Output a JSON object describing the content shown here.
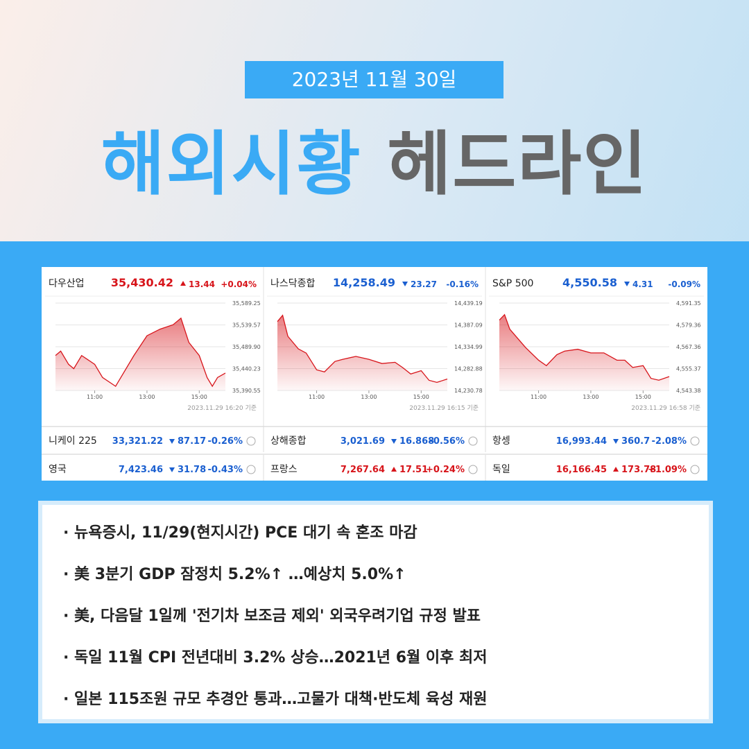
{
  "header": {
    "date": "2023년 11월 30일",
    "title_blue": "해외시황",
    "title_gray": "헤드라인"
  },
  "charts": [
    {
      "chart_data": {
        "type": "area",
        "title": "다우산업",
        "price": "35,430.42",
        "change": "13.44",
        "change_pct": "+0.04%",
        "color": "#d7141a",
        "direction": "up",
        "x": [
          9.5,
          9.7,
          10,
          10.2,
          10.5,
          11,
          11.3,
          11.8,
          12,
          12.5,
          13,
          13.5,
          14,
          14.3,
          14.6,
          15,
          15.3,
          15.5,
          15.7,
          16
        ],
        "values": [
          35470,
          35480,
          35450,
          35440,
          35470,
          35450,
          35420,
          35400,
          35420,
          35470,
          35515,
          35530,
          35540,
          35555,
          35500,
          35470,
          35420,
          35400,
          35420,
          35430
        ],
        "xlim": [
          9.5,
          16
        ],
        "ylim": [
          35390.55,
          35589.25
        ],
        "xticks": [
          {
            "value": 11,
            "label": "11:00"
          },
          {
            "value": 13,
            "label": "13:00"
          },
          {
            "value": 15,
            "label": "15:00"
          }
        ],
        "yticks": [
          {
            "value": 35589.25,
            "label": "35,589.25"
          },
          {
            "value": 35539.57,
            "label": "35,539.57"
          },
          {
            "value": 35489.9,
            "label": "35,489.90"
          },
          {
            "value": 35440.23,
            "label": "35,440.23"
          },
          {
            "value": 35390.55,
            "label": "35,390.55"
          }
        ],
        "footnote": "2023.11.29 16:20 기준"
      }
    },
    {
      "chart_data": {
        "type": "area",
        "title": "나스닥종합",
        "price": "14,258.49",
        "change": "23.27",
        "change_pct": "-0.16%",
        "color": "#d7141a",
        "direction": "down",
        "x": [
          9.5,
          9.7,
          9.9,
          10.3,
          10.6,
          11,
          11.3,
          11.7,
          12,
          12.5,
          13,
          13.5,
          14,
          14.3,
          14.6,
          15,
          15.3,
          15.6,
          16
        ],
        "values": [
          14395,
          14410,
          14360,
          14330,
          14320,
          14280,
          14275,
          14300,
          14305,
          14312,
          14305,
          14295,
          14298,
          14285,
          14270,
          14278,
          14255,
          14250,
          14258
        ],
        "xlim": [
          9.5,
          16
        ],
        "ylim": [
          14230.78,
          14439.19
        ],
        "xticks": [
          {
            "value": 11,
            "label": "11:00"
          },
          {
            "value": 13,
            "label": "13:00"
          },
          {
            "value": 15,
            "label": "15:00"
          }
        ],
        "yticks": [
          {
            "value": 14439.19,
            "label": "14,439.19"
          },
          {
            "value": 14387.09,
            "label": "14,387.09"
          },
          {
            "value": 14334.99,
            "label": "14,334.99"
          },
          {
            "value": 14282.88,
            "label": "14,282.88"
          },
          {
            "value": 14230.78,
            "label": "14,230.78"
          }
        ],
        "footnote": "2023.11.29 16:15 기준"
      }
    },
    {
      "chart_data": {
        "type": "area",
        "title": "S&P 500",
        "price": "4,550.58",
        "change": "4.31",
        "change_pct": "-0.09%",
        "color": "#d7141a",
        "direction": "down",
        "x": [
          9.5,
          9.7,
          9.9,
          10.2,
          10.5,
          11,
          11.3,
          11.7,
          12,
          12.5,
          13,
          13.5,
          14,
          14.3,
          14.6,
          15,
          15.3,
          15.6,
          16
        ],
        "values": [
          4582,
          4585,
          4577,
          4572,
          4567,
          4560,
          4557,
          4563,
          4565,
          4566,
          4564,
          4564,
          4560,
          4560,
          4556,
          4557,
          4550,
          4549,
          4551
        ],
        "xlim": [
          9.5,
          16
        ],
        "ylim": [
          4543.38,
          4591.35
        ],
        "xticks": [
          {
            "value": 11,
            "label": "11:00"
          },
          {
            "value": 13,
            "label": "13:00"
          },
          {
            "value": 15,
            "label": "15:00"
          }
        ],
        "yticks": [
          {
            "value": 4591.35,
            "label": "4,591.35"
          },
          {
            "value": 4579.36,
            "label": "4,579.36"
          },
          {
            "value": 4567.36,
            "label": "4,567.36"
          },
          {
            "value": 4555.37,
            "label": "4,555.37"
          },
          {
            "value": 4543.38,
            "label": "4,543.38"
          }
        ],
        "footnote": "2023.11.29 16:58 기준"
      }
    }
  ],
  "indices": [
    {
      "name": "니케이 225",
      "price": "33,321.22",
      "change": "87.17",
      "change_pct": "-0.26%",
      "direction": "down"
    },
    {
      "name": "상해종합",
      "price": "3,021.69",
      "change": "16.868",
      "change_pct": "-0.56%",
      "direction": "down"
    },
    {
      "name": "항셍",
      "price": "16,993.44",
      "change": "360.7",
      "change_pct": "-2.08%",
      "direction": "down"
    },
    {
      "name": "영국",
      "price": "7,423.46",
      "change": "31.78",
      "change_pct": "-0.43%",
      "direction": "down"
    },
    {
      "name": "프랑스",
      "price": "7,267.64",
      "change": "17.51",
      "change_pct": "+0.24%",
      "direction": "up"
    },
    {
      "name": "독일",
      "price": "16,166.45",
      "change": "173.78",
      "change_pct": "+1.09%",
      "direction": "up"
    }
  ],
  "headlines": [
    "뉴욕증시, 11/29(현지시간) PCE 대기 속 혼조 마감",
    "美 3분기 GDP 잠정치 5.2%↑ …예상치 5.0%↑",
    "美, 다음달 1일께 '전기차 보조금 제외' 외국우려기업 규정 발표",
    "독일 11월 CPI 전년대비 3.2% 상승…2021년 6월 이후 최저",
    "일본 115조원 규모 추경안 통과…고물가 대책·반도체 육성 재원"
  ]
}
